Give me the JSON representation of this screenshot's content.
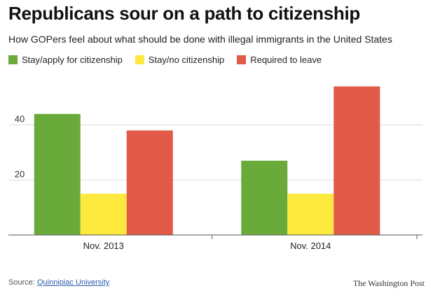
{
  "header": {
    "title": "Republicans sour on a path to citizenship",
    "subtitle": "How GOPers feel about what should be done with illegal immigrants in the United States"
  },
  "colors": {
    "stay_apply": "#6aaa3a",
    "stay_no": "#fde93e",
    "leave": "#e05a47",
    "grid": "#dddddd",
    "axis": "#555555"
  },
  "chart_data": {
    "type": "bar",
    "title": "Republicans sour on a path to citizenship",
    "subtitle": "How GOPers feel about what should be done with illegal immigrants in the United States",
    "categories": [
      "Nov. 2013",
      "Nov. 2014"
    ],
    "series": [
      {
        "name": "Stay/apply for citizenship",
        "color": "#6aaa3a",
        "values": [
          44,
          27
        ]
      },
      {
        "name": "Stay/no citizenship",
        "color": "#fde93e",
        "values": [
          15,
          15
        ]
      },
      {
        "name": "Required to leave",
        "color": "#e05a47",
        "values": [
          38,
          54
        ]
      }
    ],
    "yticks": [
      "20",
      "40"
    ],
    "ylim": [
      0,
      60
    ],
    "xlabel": "",
    "ylabel": "",
    "grid": true,
    "legend": "top-left"
  },
  "footer": {
    "source_prefix": "Source: ",
    "source_link": "Quinnipiac University",
    "brand": "The Washington Post"
  }
}
